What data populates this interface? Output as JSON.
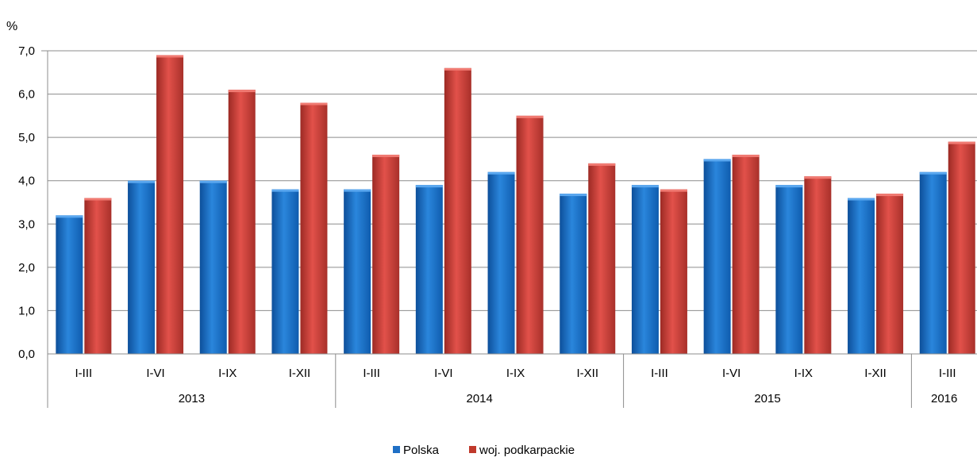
{
  "chart_data": {
    "type": "bar",
    "unit_label": "%",
    "ylim": [
      0,
      7
    ],
    "yticks": [
      "0,0",
      "1,0",
      "2,0",
      "3,0",
      "4,0",
      "5,0",
      "6,0",
      "7,0"
    ],
    "grid": true,
    "legend_position": "bottom-center",
    "groups": [
      {
        "label": "2013",
        "categories": [
          "I-III",
          "I-VI",
          "I-IX",
          "I-XII"
        ]
      },
      {
        "label": "2014",
        "categories": [
          "I-III",
          "I-VI",
          "I-IX",
          "I-XII"
        ]
      },
      {
        "label": "2015",
        "categories": [
          "I-III",
          "I-VI",
          "I-IX",
          "I-XII"
        ]
      },
      {
        "label": "2016",
        "categories": [
          "I-III"
        ]
      }
    ],
    "series": [
      {
        "name": "Polska",
        "color": "#1f6fc5",
        "values": [
          3.2,
          4.0,
          4.0,
          3.8,
          3.8,
          3.9,
          4.2,
          3.7,
          3.9,
          4.5,
          3.9,
          3.6,
          4.2
        ]
      },
      {
        "name": "woj. podkarpackie",
        "color": "#c0392b",
        "values": [
          3.6,
          6.9,
          6.1,
          5.8,
          4.6,
          6.6,
          5.5,
          4.4,
          3.8,
          4.6,
          4.1,
          3.7,
          4.9
        ]
      }
    ]
  }
}
